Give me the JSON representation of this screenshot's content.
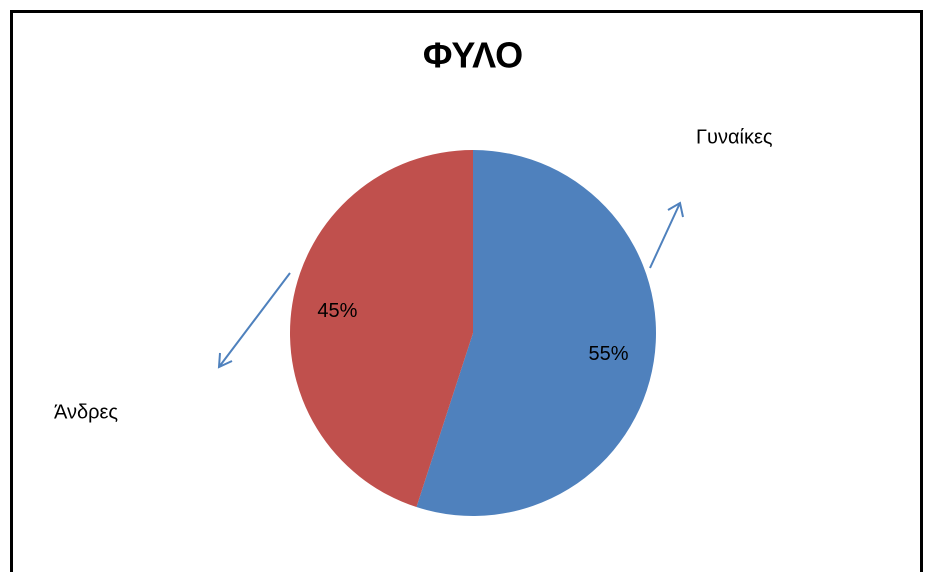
{
  "chart_data": {
    "type": "pie",
    "title": "ΦΥΛΟ",
    "categories": [
      "Γυναίκες",
      "Άνδρες"
    ],
    "values": [
      55,
      45
    ],
    "value_labels": [
      "55%",
      "45%"
    ],
    "colors": [
      "#4f81bd",
      "#c0504d"
    ]
  }
}
